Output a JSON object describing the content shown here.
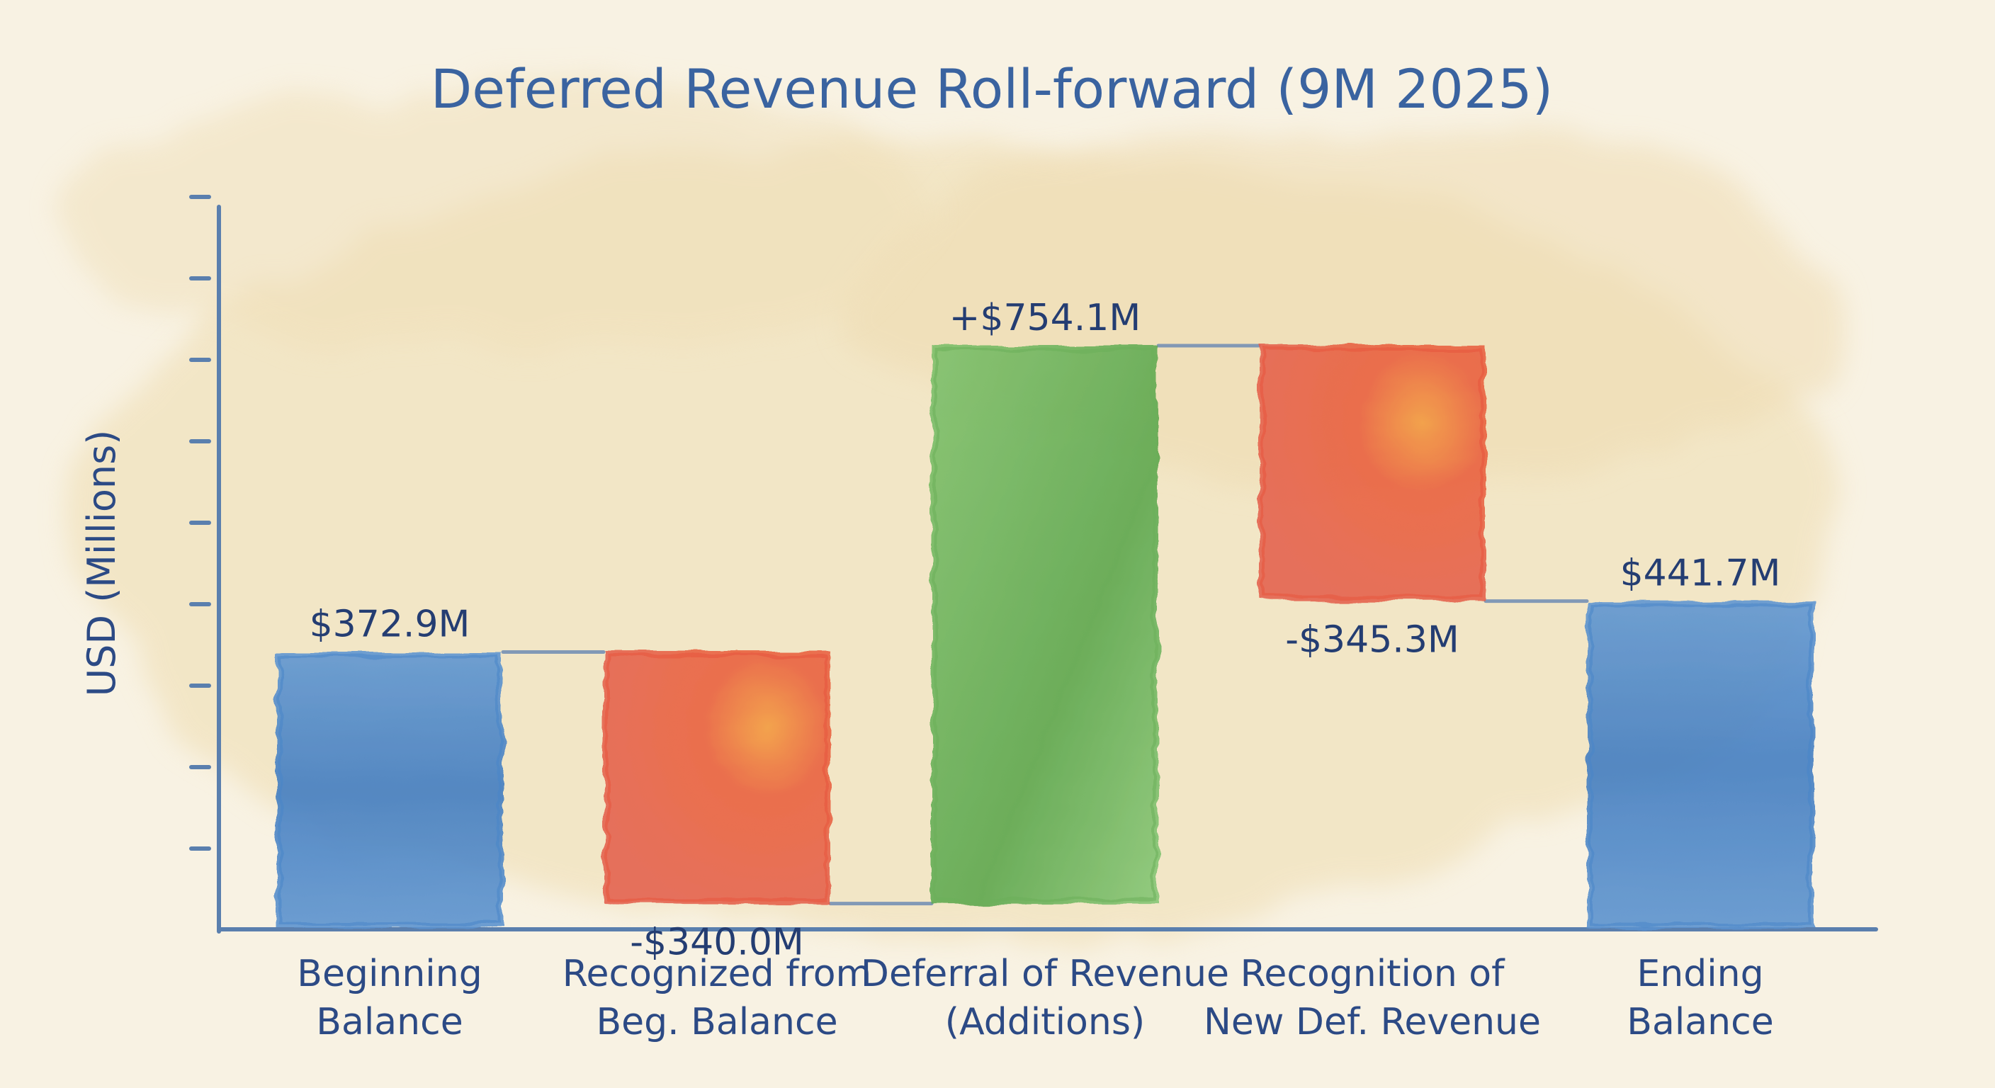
{
  "chart_data": {
    "type": "bar",
    "subtype": "waterfall",
    "title": "Deferred Revenue Roll-forward (9M 2025)",
    "xlabel": "",
    "ylabel": "USD (Millions)",
    "ylim": [
      0,
      900
    ],
    "grid": false,
    "categories": [
      [
        "Beginning",
        "Balance"
      ],
      [
        "Recognized from",
        "Beg. Balance"
      ],
      [
        "Deferral of Revenue",
        "(Additions)"
      ],
      [
        "Recognition of",
        "New Def. Revenue"
      ],
      [
        "Ending",
        "Balance"
      ]
    ],
    "values": [
      372.9,
      -340.0,
      754.1,
      -345.3,
      441.7
    ],
    "kinds": [
      "total",
      "decrease",
      "increase",
      "decrease",
      "total"
    ],
    "data_labels": [
      "$372.9M",
      "-$340.0M",
      "+$754.1M",
      "-$345.3M",
      "$441.7M"
    ],
    "colors": {
      "total": "#4a86c9",
      "increase": "#6cb05a",
      "decrease": "#e8553e",
      "axis": "#5a7fae",
      "connector": "#6f8cb4"
    }
  }
}
